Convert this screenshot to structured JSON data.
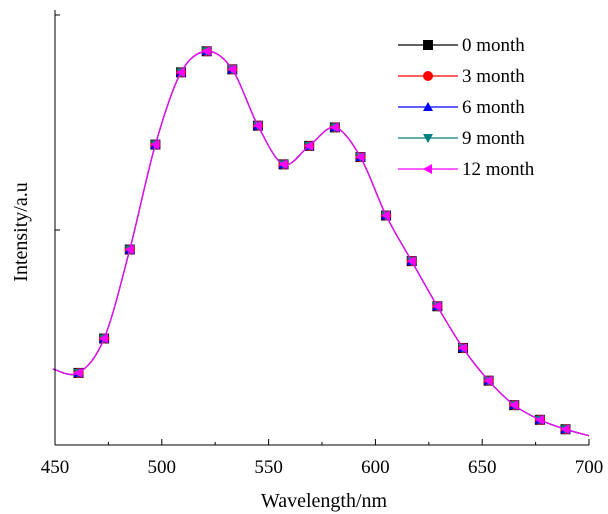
{
  "chart_data": {
    "type": "line",
    "xlabel": "Wavelength/nm",
    "ylabel": "Intensity/a.u",
    "xlim": [
      450,
      700
    ],
    "ylim": [
      0,
      100
    ],
    "x_ticks": [
      "450",
      "500",
      "550",
      "600",
      "650",
      "700"
    ],
    "y_tick_labels_shown": false,
    "grid": false,
    "legend_position": "top-right",
    "x": [
      449,
      461,
      473,
      485,
      497,
      509,
      521,
      533,
      545,
      557,
      569,
      581,
      593,
      605,
      617,
      629,
      641,
      653,
      665,
      677,
      689,
      700
    ],
    "series": [
      {
        "name": "0 month",
        "marker": "square",
        "color": "#000000",
        "values": [
          16.5,
          15.6,
          23.6,
          44.3,
          68.7,
          85.5,
          90.4,
          86.2,
          73.1,
          64.1,
          68.4,
          72.7,
          65.8,
          52.2,
          41.6,
          31.1,
          21.4,
          13.8,
          8.1,
          4.7,
          2.5,
          1.0
        ]
      },
      {
        "name": "3 month",
        "marker": "circle",
        "color": "#ff0000",
        "values": [
          16.5,
          15.6,
          23.6,
          44.3,
          68.7,
          85.5,
          90.4,
          86.2,
          73.1,
          64.1,
          68.4,
          72.7,
          65.8,
          52.2,
          41.6,
          31.1,
          21.4,
          13.8,
          8.1,
          4.7,
          2.5,
          1.0
        ]
      },
      {
        "name": "6 month",
        "marker": "triangle-up",
        "color": "#0000ff",
        "values": [
          16.5,
          15.6,
          23.6,
          44.3,
          68.7,
          85.5,
          90.4,
          86.2,
          73.1,
          64.1,
          68.4,
          72.7,
          65.8,
          52.2,
          41.6,
          31.1,
          21.4,
          13.8,
          8.1,
          4.7,
          2.5,
          1.0
        ]
      },
      {
        "name": "9 month",
        "marker": "triangle-down",
        "color": "#008080",
        "values": [
          16.5,
          15.6,
          23.6,
          44.3,
          68.7,
          85.5,
          90.4,
          86.2,
          73.1,
          64.1,
          68.4,
          72.7,
          65.8,
          52.2,
          41.6,
          31.1,
          21.4,
          13.8,
          8.1,
          4.7,
          2.5,
          1.0
        ]
      },
      {
        "name": "12 month",
        "marker": "triangle-left",
        "color": "#ff00ff",
        "values": [
          16.5,
          15.6,
          23.6,
          44.3,
          68.7,
          85.5,
          90.4,
          86.2,
          73.1,
          64.1,
          68.4,
          72.7,
          65.8,
          52.2,
          41.6,
          31.1,
          21.4,
          13.8,
          8.1,
          4.7,
          2.5,
          1.0
        ]
      }
    ]
  }
}
